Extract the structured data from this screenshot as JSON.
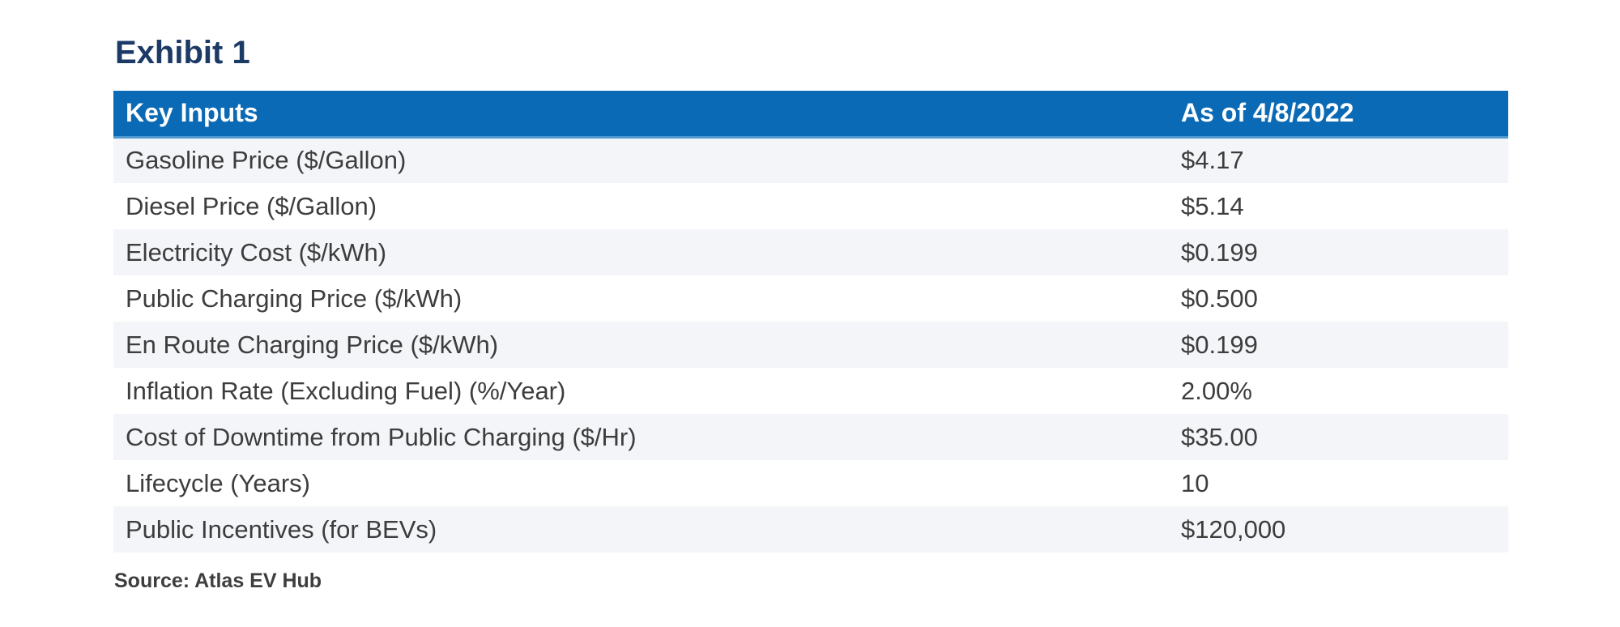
{
  "page": {
    "title": "Exhibit 1",
    "source": "Source: Atlas EV Hub"
  },
  "table": {
    "header": {
      "label": "Key Inputs",
      "value": "As of 4/8/2022"
    },
    "rows": [
      {
        "label": "Gasoline Price ($/Gallon)",
        "value": "$4.17"
      },
      {
        "label": "Diesel Price ($/Gallon)",
        "value": "$5.14"
      },
      {
        "label": "Electricity Cost ($/kWh)",
        "value": "$0.199"
      },
      {
        "label": "Public Charging Price ($/kWh)",
        "value": "$0.500"
      },
      {
        "label": "En Route Charging Price ($/kWh)",
        "value": "$0.199"
      },
      {
        "label": "Inflation Rate (Excluding Fuel) (%/Year)",
        "value": "2.00%"
      },
      {
        "label": "Cost of Downtime from Public Charging ($/Hr)",
        "value": "$35.00"
      },
      {
        "label": "Lifecycle (Years)",
        "value": "10"
      },
      {
        "label": "Public Incentives (for BEVs)",
        "value": "$120,000"
      }
    ]
  },
  "colors": {
    "header_bg": "#0b6ab5",
    "header_border": "#4f97cf",
    "title_navy": "#1c3a66",
    "stripe_row_bg": "#f4f5f8",
    "row_text": "#3d3d3d",
    "source_text": "#3e3e3e"
  }
}
